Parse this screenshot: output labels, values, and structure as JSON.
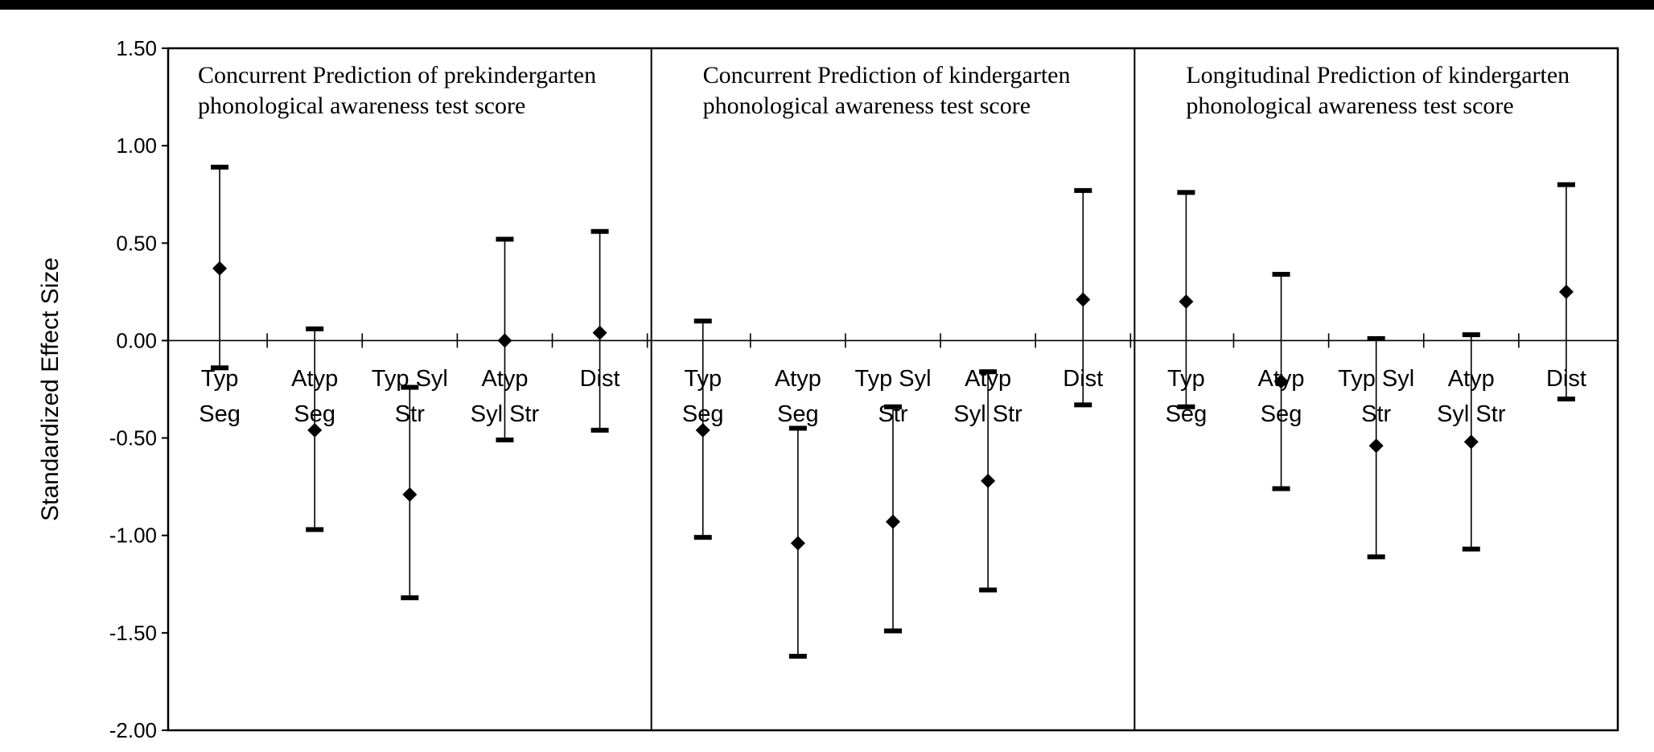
{
  "chart_data": {
    "type": "scatter",
    "ylabel": "Standardized Effect Size",
    "ylim": [
      -2.0,
      1.5
    ],
    "yticks": [
      "1.50",
      "1.00",
      "0.50",
      "0.00",
      "-0.50",
      "-1.00",
      "-1.50",
      "-2.00"
    ],
    "ytick_values": [
      1.5,
      1.0,
      0.5,
      0.0,
      -0.5,
      -1.0,
      -1.5,
      -2.0
    ],
    "grid": false,
    "colors": {
      "marker": "#000000",
      "axis": "#000000"
    },
    "panels": [
      {
        "title_lines": [
          "Concurrent Prediction of prekindergarten",
          "phonological awareness test score"
        ],
        "categories": [
          [
            "Typ",
            "Seg"
          ],
          [
            "Atyp",
            "Seg"
          ],
          [
            "Typ Syl",
            "Str"
          ],
          [
            "Atyp",
            "Syl Str"
          ],
          [
            "Dist"
          ]
        ],
        "points": [
          {
            "y": 0.37,
            "low": -0.14,
            "high": 0.89
          },
          {
            "y": -0.46,
            "low": -0.97,
            "high": 0.06
          },
          {
            "y": -0.79,
            "low": -1.32,
            "high": -0.24
          },
          {
            "y": 0.0,
            "low": -0.51,
            "high": 0.52
          },
          {
            "y": 0.04,
            "low": -0.46,
            "high": 0.56
          }
        ]
      },
      {
        "title_lines": [
          "Concurrent Prediction of kindergarten",
          "phonological awareness test score"
        ],
        "categories": [
          [
            "Typ",
            "Seg"
          ],
          [
            "Atyp",
            "Seg"
          ],
          [
            "Typ Syl",
            "Str"
          ],
          [
            "Atyp",
            "Syl Str"
          ],
          [
            "Dist"
          ]
        ],
        "points": [
          {
            "y": -0.46,
            "low": -1.01,
            "high": 0.1
          },
          {
            "y": -1.04,
            "low": -1.62,
            "high": -0.45
          },
          {
            "y": -0.93,
            "low": -1.49,
            "high": -0.34
          },
          {
            "y": -0.72,
            "low": -1.28,
            "high": -0.16
          },
          {
            "y": 0.21,
            "low": -0.33,
            "high": 0.77
          }
        ]
      },
      {
        "title_lines": [
          "Longitudinal Prediction of kindergarten",
          "phonological awareness test score"
        ],
        "categories": [
          [
            "Typ",
            "Seg"
          ],
          [
            "Atyp",
            "Seg"
          ],
          [
            "Typ Syl",
            "Str"
          ],
          [
            "Atyp",
            "Syl Str"
          ],
          [
            "Dist"
          ]
        ],
        "points": [
          {
            "y": 0.2,
            "low": -0.34,
            "high": 0.76
          },
          {
            "y": -0.21,
            "low": -0.76,
            "high": 0.34
          },
          {
            "y": -0.54,
            "low": -1.11,
            "high": 0.01
          },
          {
            "y": -0.52,
            "low": -1.07,
            "high": 0.03
          },
          {
            "y": 0.25,
            "low": -0.3,
            "high": 0.8
          }
        ]
      }
    ]
  }
}
